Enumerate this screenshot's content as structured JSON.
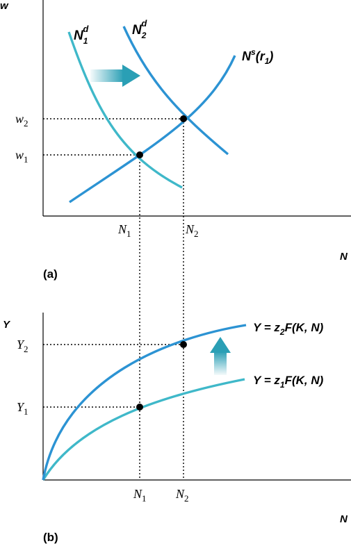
{
  "chart_data": [
    {
      "panel_label": "(a)",
      "type": "line",
      "ylabel": "w",
      "xlabel": "N",
      "colors": {
        "initial": "#3fb8c9",
        "shifted": "#2c93d3",
        "shift_arrow": "#2a9fb5"
      },
      "series": [
        {
          "name": {
            "base": "N",
            "sub": "1",
            "sup": "d"
          },
          "role": "labor demand (initial)"
        },
        {
          "name": {
            "base": "N",
            "sub": "2",
            "sup": "d"
          },
          "role": "labor demand (shifted)"
        },
        {
          "name": {
            "base": "N",
            "sup": "s",
            "arg_base": "r",
            "arg_sub": "1"
          },
          "role": "labor supply"
        }
      ],
      "equilibria": [
        {
          "x_label": {
            "base": "N",
            "sub": "1"
          },
          "y_label": {
            "base": "w",
            "sub": "1"
          }
        },
        {
          "x_label": {
            "base": "N",
            "sub": "2"
          },
          "y_label": {
            "base": "w",
            "sub": "2"
          }
        }
      ],
      "shift_arrow": "right"
    },
    {
      "panel_label": "(b)",
      "type": "line",
      "ylabel": "Y",
      "xlabel": "N",
      "colors": {
        "initial": "#3fb8c9",
        "shifted": "#2c93d3",
        "shift_arrow": "#2a9fb5"
      },
      "series": [
        {
          "name": {
            "lhs": "Y = ",
            "base": "z",
            "sub": "1",
            "rest": "F(K, N)"
          },
          "role": "production function (initial)"
        },
        {
          "name": {
            "lhs": "Y = ",
            "base": "z",
            "sub": "2",
            "rest": "F(K, N)"
          },
          "role": "production function (shifted)"
        }
      ],
      "equilibria": [
        {
          "x_label": {
            "base": "N",
            "sub": "1"
          },
          "y_label": {
            "base": "Y",
            "sub": "1"
          }
        },
        {
          "x_label": {
            "base": "N",
            "sub": "2"
          },
          "y_label": {
            "base": "Y",
            "sub": "2"
          }
        }
      ],
      "shift_arrow": "up"
    }
  ]
}
